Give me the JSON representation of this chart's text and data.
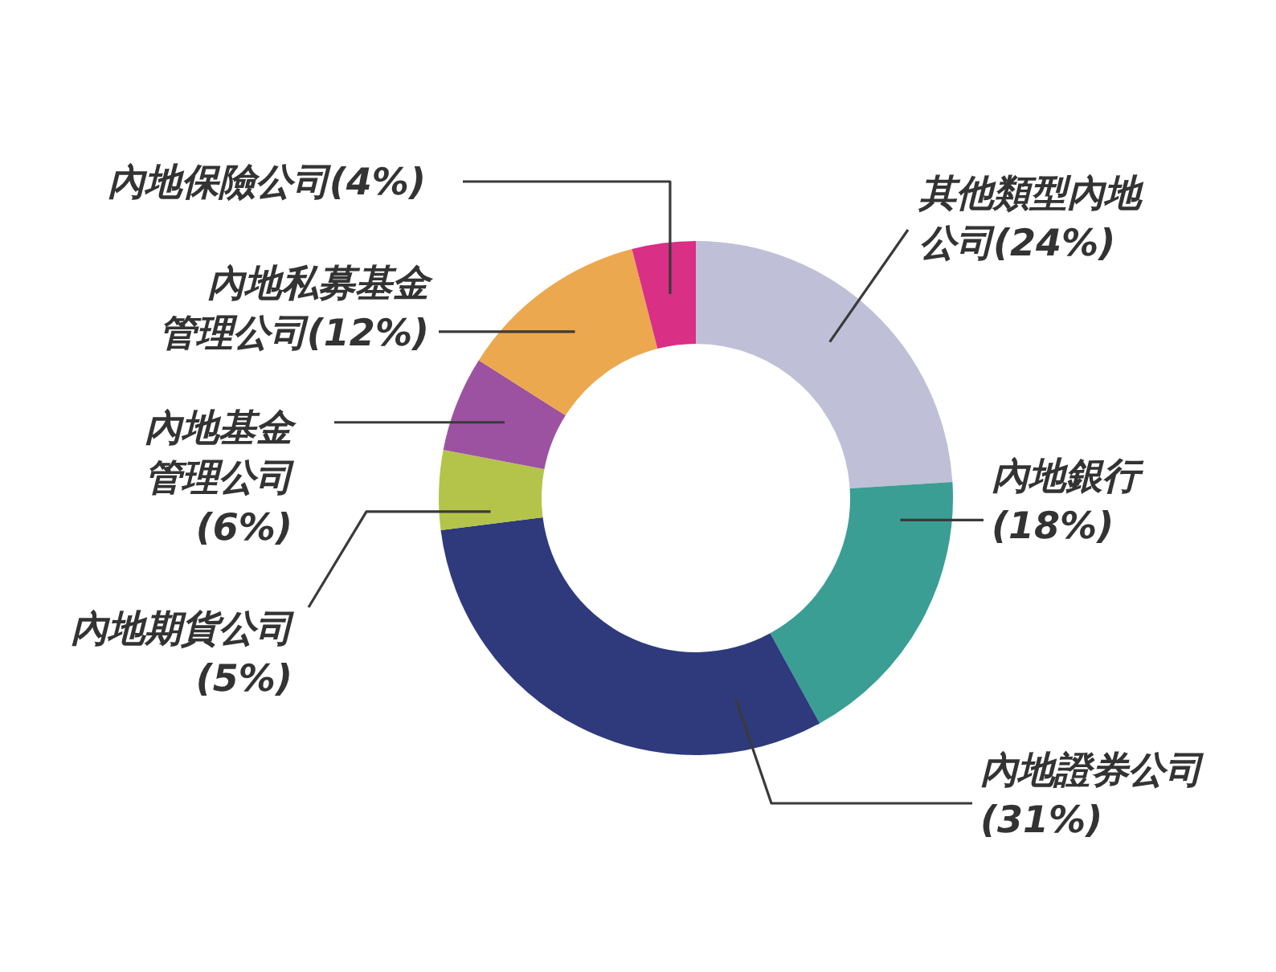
{
  "chart_data": {
    "type": "donut",
    "categories": [
      "其他類型內地公司",
      "內地銀行",
      "內地證券公司",
      "內地期貨公司",
      "內地基金管理公司",
      "內地私募基金管理公司",
      "內地保險公司"
    ],
    "values": [
      24,
      18,
      31,
      5,
      6,
      12,
      4
    ],
    "colors": [
      "#bfc0d8",
      "#3a9e94",
      "#2e3a7c",
      "#b4c44a",
      "#9c52a0",
      "#eca84e",
      "#d92f85"
    ],
    "value_labels": [
      "(24%)",
      "(18%)",
      "(31%)",
      "(5%)",
      "(6%)",
      "(12%)",
      "(4%)"
    ],
    "legend": false
  }
}
